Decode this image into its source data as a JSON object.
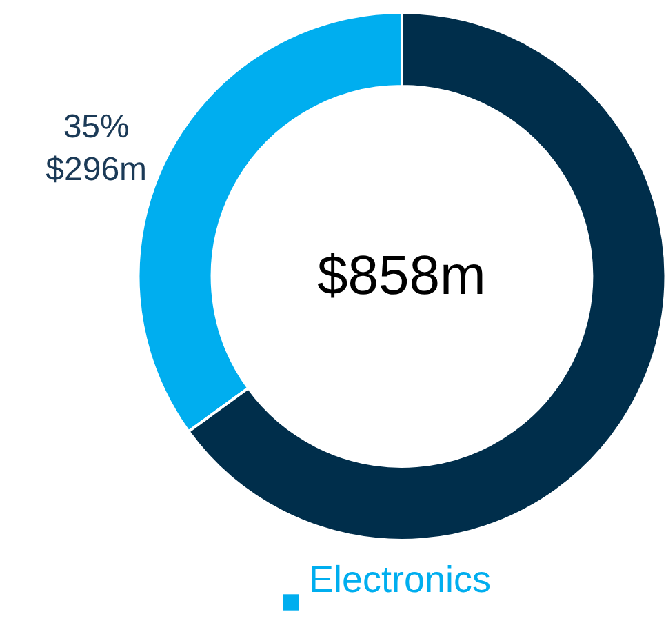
{
  "chart_data": {
    "type": "donut",
    "categories": [
      "Electronics",
      null
    ],
    "values": [
      35,
      65
    ],
    "colors": [
      "#00aeef",
      "#002e4b"
    ],
    "value_labels": [
      "35%\n$296m",
      null
    ],
    "annotations": [
      "$858m"
    ],
    "legend": "bottom"
  }
}
